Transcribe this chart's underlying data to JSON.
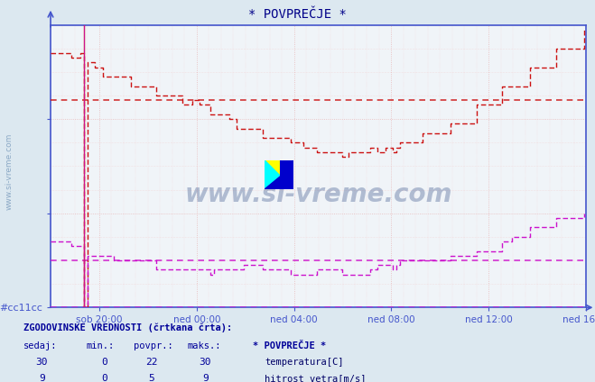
{
  "title": "* POVPREČJE *",
  "bg_color": "#dce8f0",
  "plot_bg_color": "#f0f4f8",
  "grid_color_h": "#e8b0b0",
  "grid_color_v": "#e8c0c0",
  "border_color": "#4455cc",
  "tick_color": "#4455cc",
  "temp_color": "#cc1111",
  "wind_color": "#cc11cc",
  "avg_temp_color": "#cc1111",
  "avg_wind_color": "#cc11cc",
  "ylim": [
    0,
    30
  ],
  "yticks": [
    0,
    10,
    20
  ],
  "xlabel_ticks": [
    "sob 20:00",
    "ned 00:00",
    "ned 04:00",
    "ned 08:00",
    "ned 12:00",
    "ned 16:00"
  ],
  "temp_avg_line": 22,
  "wind_avg_line": 5,
  "watermark": "www.si-vreme.com",
  "watermark_color": "#1a3a7a",
  "legend_title": "* POVPREČJE *",
  "legend_items": [
    "temperatura[C]",
    "hitrost vetra[m/s]"
  ],
  "bottom_header": "ZGODOVINSKE VREDNOSTI (črtkana črta):",
  "col_headers": [
    "sedaj:",
    "min.:",
    "povpr.:",
    "maks.:"
  ],
  "temp_vals": [
    30,
    0,
    22,
    30
  ],
  "wind_vals": [
    9,
    0,
    5,
    9
  ],
  "num_points": 288,
  "sidebar_text": "www.si-vreme.com"
}
